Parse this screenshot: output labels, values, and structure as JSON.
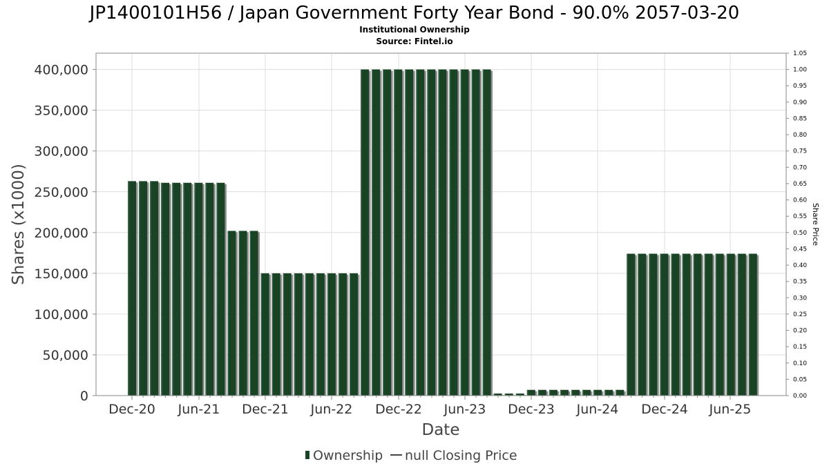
{
  "chart_data": {
    "type": "bar",
    "title": "JP1400101H56 / Japan Government Forty Year Bond - 90.0% 2057-03-20",
    "subtitle_lines": [
      "Institutional Ownership",
      "Source: Fintel.io"
    ],
    "xlabel": "Date",
    "ylabel": "Shares (x1000)",
    "y2label": "Share Price",
    "ylim": [
      0,
      420000
    ],
    "y_ticks": [
      "0",
      "50,000",
      "100,000",
      "150,000",
      "200,000",
      "250,000",
      "300,000",
      "350,000",
      "400,000"
    ],
    "y2lim": [
      0,
      1.05
    ],
    "y2_ticks": [
      "0.00",
      "0.05",
      "0.10",
      "0.15",
      "0.20",
      "0.25",
      "0.30",
      "0.35",
      "0.40",
      "0.45",
      "0.50",
      "0.55",
      "0.60",
      "0.65",
      "0.70",
      "0.75",
      "0.80",
      "0.85",
      "0.90",
      "0.95",
      "1.00",
      "1.05"
    ],
    "x_ticks": [
      "Dec-20",
      "Jun-21",
      "Dec-21",
      "Jun-22",
      "Dec-22",
      "Jun-23",
      "Dec-23",
      "Jun-24",
      "Dec-24",
      "Jun-25"
    ],
    "grid": true,
    "legend_position": "bottom-center",
    "series": [
      {
        "name": "Ownership",
        "color": "#1a4224",
        "values": [
          263000,
          263000,
          263000,
          261000,
          261000,
          261000,
          261000,
          261000,
          261000,
          202000,
          202000,
          202000,
          150000,
          150000,
          150000,
          150000,
          150000,
          150000,
          150000,
          150000,
          150000,
          400000,
          400000,
          400000,
          400000,
          400000,
          400000,
          400000,
          400000,
          400000,
          400000,
          400000,
          400000,
          2500,
          2500,
          2500,
          7000,
          7000,
          7000,
          7000,
          7000,
          7000,
          7000,
          7000,
          7000,
          174000,
          174000,
          174000,
          174000,
          174000,
          174000,
          174000,
          174000,
          174000,
          174000,
          174000,
          174000
        ]
      },
      {
        "name": "null Closing Price",
        "color": "#444444",
        "values": []
      }
    ]
  }
}
